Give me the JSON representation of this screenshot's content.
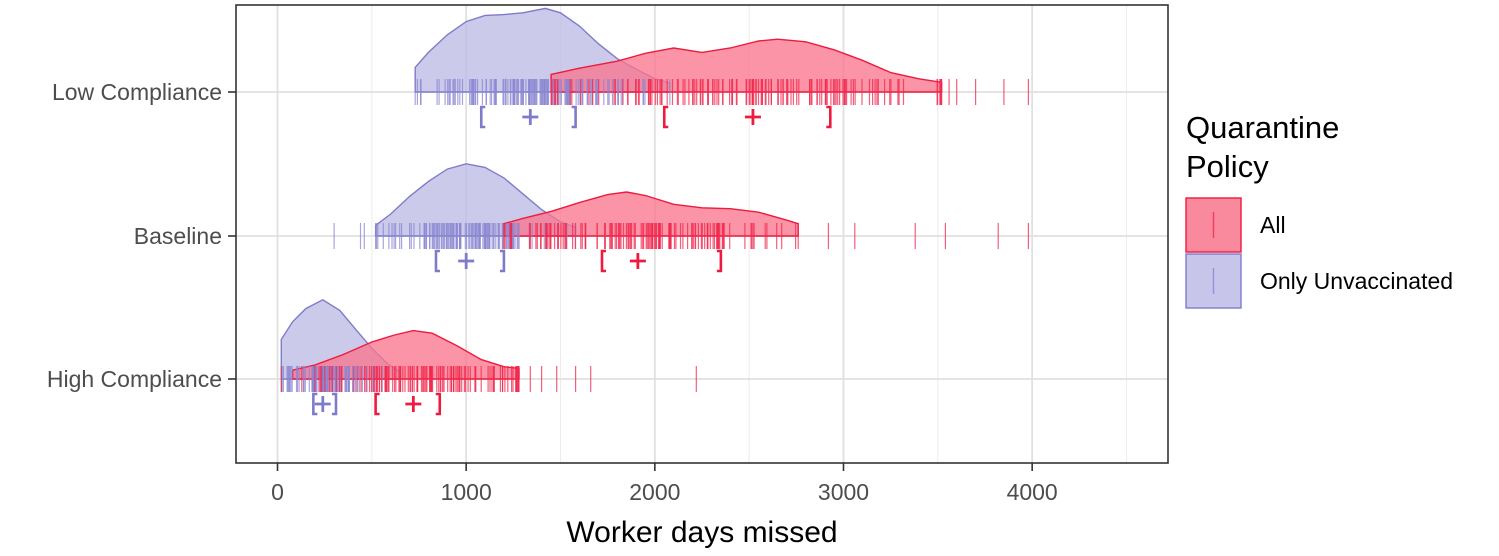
{
  "chart_data": {
    "type": "raincloud",
    "title": "",
    "xlabel": "Worker days missed",
    "ylabel": "",
    "xlim": [
      -220,
      4720
    ],
    "xticks": [
      0,
      1000,
      2000,
      3000,
      4000
    ],
    "xtick_labels": [
      "0",
      "1000",
      "2000",
      "3000",
      "4000"
    ],
    "x_minor_gridlines": [
      500,
      1500,
      2500,
      3500,
      4500
    ],
    "categories": [
      "Low Compliance",
      "Baseline",
      "High Compliance"
    ],
    "legend": {
      "title_line1": "Quarantine",
      "title_line2": "Policy",
      "position": "right",
      "entries": [
        {
          "label": "All",
          "fill": "#F8768D",
          "stroke": "#EE1B3F"
        },
        {
          "label": "Only Unvaccinated",
          "fill": "#BDBBE6",
          "stroke": "#7F7BCB"
        }
      ]
    },
    "colors": {
      "All": {
        "fill": "#F8768D",
        "stroke": "#EE1B3F",
        "rug": "#F0284D",
        "summary": "#EE1B3F"
      },
      "Only Unvaccinated": {
        "fill": "#BDBBE6",
        "stroke": "#7F7BCB",
        "rug": "#8A86D0",
        "summary": "#7F7BCB"
      }
    },
    "groups": [
      {
        "category": "Low Compliance",
        "series": [
          {
            "name": "Only Unvaccinated",
            "density": [
              [
                730,
                0
              ],
              [
                730,
                0.28
              ],
              [
                800,
                0.45
              ],
              [
                900,
                0.65
              ],
              [
                1000,
                0.8
              ],
              [
                1100,
                0.87
              ],
              [
                1200,
                0.88
              ],
              [
                1300,
                0.9
              ],
              [
                1420,
                0.95
              ],
              [
                1500,
                0.9
              ],
              [
                1600,
                0.75
              ],
              [
                1700,
                0.55
              ],
              [
                1800,
                0.38
              ],
              [
                1900,
                0.26
              ],
              [
                2000,
                0.15
              ],
              [
                2080,
                0.1
              ],
              [
                2080,
                0
              ]
            ],
            "rug": {
              "min": 730,
              "max": 2080,
              "n": 130,
              "center": 1340,
              "spread": 260
            },
            "mean": 1340,
            "interval": [
              1080,
              1580
            ]
          },
          {
            "name": "All",
            "density": [
              [
                1450,
                0
              ],
              [
                1450,
                0.2
              ],
              [
                1600,
                0.27
              ],
              [
                1800,
                0.35
              ],
              [
                1950,
                0.44
              ],
              [
                2100,
                0.5
              ],
              [
                2250,
                0.45
              ],
              [
                2400,
                0.5
              ],
              [
                2550,
                0.58
              ],
              [
                2650,
                0.6
              ],
              [
                2800,
                0.57
              ],
              [
                2950,
                0.48
              ],
              [
                3100,
                0.36
              ],
              [
                3250,
                0.22
              ],
              [
                3400,
                0.15
              ],
              [
                3520,
                0.11
              ],
              [
                3520,
                0
              ]
            ],
            "rug": {
              "min": 1450,
              "max": 3520,
              "n": 140,
              "center": 2500,
              "spread": 480
            },
            "rug_outliers": [
              3560,
              3600,
              3700,
              3850,
              3980
            ],
            "mean": 2520,
            "interval": [
              2050,
              2930
            ]
          }
        ]
      },
      {
        "category": "Baseline",
        "series": [
          {
            "name": "Only Unvaccinated",
            "density": [
              [
                520,
                0
              ],
              [
                520,
                0.12
              ],
              [
                600,
                0.25
              ],
              [
                700,
                0.45
              ],
              [
                800,
                0.62
              ],
              [
                900,
                0.76
              ],
              [
                1000,
                0.82
              ],
              [
                1100,
                0.78
              ],
              [
                1200,
                0.66
              ],
              [
                1300,
                0.48
              ],
              [
                1400,
                0.3
              ],
              [
                1500,
                0.16
              ],
              [
                1580,
                0.1
              ],
              [
                1580,
                0
              ]
            ],
            "rug": {
              "min": 520,
              "max": 1580,
              "n": 110,
              "center": 1000,
              "spread": 200
            },
            "rug_outliers": [
              300,
              440,
              460
            ],
            "mean": 1000,
            "interval": [
              840,
              1200
            ]
          },
          {
            "name": "All",
            "density": [
              [
                1200,
                0
              ],
              [
                1200,
                0.14
              ],
              [
                1300,
                0.2
              ],
              [
                1450,
                0.28
              ],
              [
                1600,
                0.38
              ],
              [
                1750,
                0.47
              ],
              [
                1850,
                0.5
              ],
              [
                1950,
                0.46
              ],
              [
                2100,
                0.36
              ],
              [
                2250,
                0.32
              ],
              [
                2400,
                0.31
              ],
              [
                2550,
                0.27
              ],
              [
                2700,
                0.18
              ],
              [
                2760,
                0.14
              ],
              [
                2760,
                0
              ]
            ],
            "rug": {
              "min": 1200,
              "max": 2760,
              "n": 130,
              "center": 1950,
              "spread": 380
            },
            "rug_outliers": [
              2920,
              3060,
              3380,
              3540,
              3820,
              3980
            ],
            "mean": 1910,
            "interval": [
              1720,
              2350
            ]
          }
        ]
      },
      {
        "category": "High Compliance",
        "series": [
          {
            "name": "Only Unvaccinated",
            "density": [
              [
                20,
                0
              ],
              [
                20,
                0.45
              ],
              [
                80,
                0.65
              ],
              [
                150,
                0.8
              ],
              [
                240,
                0.9
              ],
              [
                330,
                0.78
              ],
              [
                420,
                0.55
              ],
              [
                500,
                0.35
              ],
              [
                580,
                0.18
              ],
              [
                650,
                0.08
              ],
              [
                650,
                0
              ]
            ],
            "rug": {
              "min": 20,
              "max": 650,
              "n": 90,
              "center": 240,
              "spread": 130
            },
            "mean": 240,
            "interval": [
              190,
              310
            ]
          },
          {
            "name": "All",
            "density": [
              [
                80,
                0
              ],
              [
                80,
                0.1
              ],
              [
                200,
                0.16
              ],
              [
                350,
                0.28
              ],
              [
                500,
                0.42
              ],
              [
                620,
                0.5
              ],
              [
                720,
                0.55
              ],
              [
                820,
                0.52
              ],
              [
                950,
                0.38
              ],
              [
                1080,
                0.22
              ],
              [
                1200,
                0.14
              ],
              [
                1280,
                0.12
              ],
              [
                1280,
                0
              ]
            ],
            "rug": {
              "min": 20,
              "max": 1280,
              "n": 120,
              "center": 720,
              "spread": 300
            },
            "rug_outliers": [
              1340,
              1400,
              1480,
              1580,
              1660,
              2220
            ],
            "mean": 720,
            "interval": [
              520,
              860
            ]
          }
        ]
      }
    ]
  }
}
